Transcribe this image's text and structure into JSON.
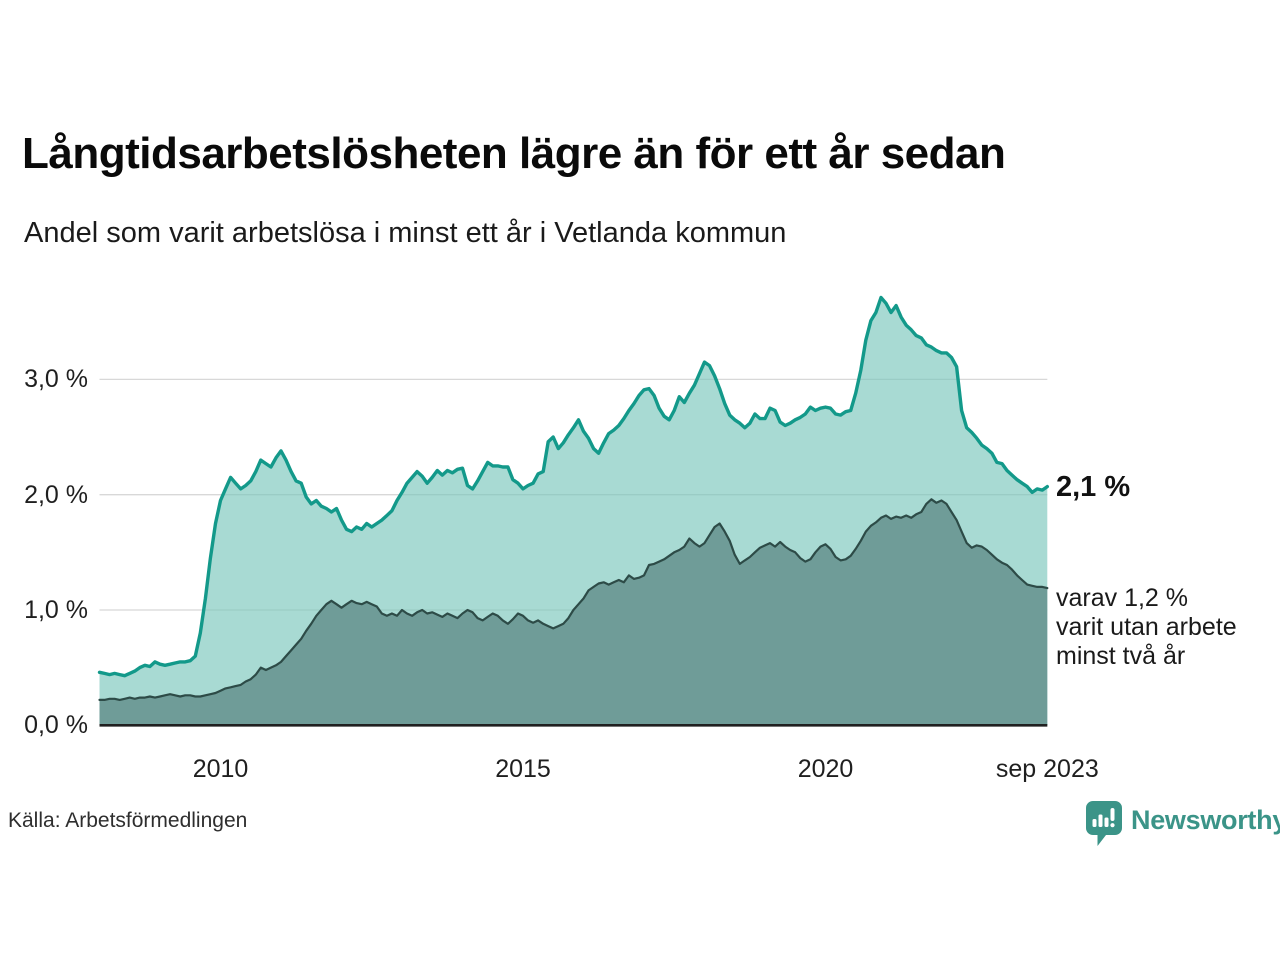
{
  "header": {
    "title": "Långtidsarbetslösheten lägre än för ett år sedan",
    "subtitle": "Andel som varit arbetslösa i minst ett år i Vetlanda kommun"
  },
  "chart_data": {
    "type": "area",
    "title": "Långtidsarbetslösheten lägre än för ett år sedan",
    "subtitle": "Andel som varit arbetslösa i minst ett år i Vetlanda kommun",
    "unit": "%",
    "x_start_year": 2008.0,
    "x_step_years": 0.0833333,
    "x_end_label": "sep 2023",
    "ylim": [
      0,
      3.85
    ],
    "grid": "horizontal",
    "legend": "none",
    "y_ticks": [
      {
        "v": 0,
        "label": "0,0 %"
      },
      {
        "v": 1,
        "label": "1,0 %"
      },
      {
        "v": 2,
        "label": "2,0 %"
      },
      {
        "v": 3,
        "label": "3,0 %"
      }
    ],
    "x_ticks": [
      {
        "v": 2010,
        "label": "2010"
      },
      {
        "v": 2015,
        "label": "2015"
      },
      {
        "v": 2020,
        "label": "2020"
      },
      {
        "v": 2023.67,
        "label": "sep 2023"
      }
    ],
    "series": [
      {
        "name": "arbetslösa minst ett år",
        "line_color": "#13998a",
        "fill_color": "rgba(121,198,188,0.65)",
        "line_width": 3.4,
        "values": [
          0.46,
          0.45,
          0.44,
          0.45,
          0.44,
          0.43,
          0.45,
          0.47,
          0.5,
          0.52,
          0.51,
          0.55,
          0.53,
          0.52,
          0.53,
          0.54,
          0.55,
          0.55,
          0.56,
          0.6,
          0.8,
          1.1,
          1.45,
          1.75,
          1.95,
          2.05,
          2.15,
          2.1,
          2.05,
          2.08,
          2.12,
          2.2,
          2.3,
          2.27,
          2.24,
          2.32,
          2.38,
          2.3,
          2.2,
          2.12,
          2.1,
          1.98,
          1.92,
          1.95,
          1.9,
          1.88,
          1.85,
          1.88,
          1.78,
          1.7,
          1.68,
          1.72,
          1.7,
          1.75,
          1.72,
          1.75,
          1.78,
          1.82,
          1.86,
          1.95,
          2.02,
          2.1,
          2.15,
          2.2,
          2.16,
          2.1,
          2.15,
          2.21,
          2.17,
          2.21,
          2.19,
          2.22,
          2.23,
          2.08,
          2.05,
          2.12,
          2.2,
          2.28,
          2.25,
          2.25,
          2.24,
          2.24,
          2.13,
          2.1,
          2.05,
          2.08,
          2.1,
          2.18,
          2.2,
          2.46,
          2.5,
          2.4,
          2.45,
          2.52,
          2.58,
          2.65,
          2.55,
          2.49,
          2.4,
          2.36,
          2.45,
          2.53,
          2.56,
          2.6,
          2.66,
          2.73,
          2.79,
          2.86,
          2.91,
          2.92,
          2.86,
          2.75,
          2.68,
          2.65,
          2.73,
          2.85,
          2.8,
          2.88,
          2.95,
          3.05,
          3.15,
          3.12,
          3.03,
          2.92,
          2.79,
          2.69,
          2.65,
          2.62,
          2.58,
          2.62,
          2.7,
          2.66,
          2.66,
          2.75,
          2.73,
          2.63,
          2.6,
          2.62,
          2.65,
          2.67,
          2.7,
          2.76,
          2.73,
          2.75,
          2.76,
          2.75,
          2.7,
          2.69,
          2.72,
          2.73,
          2.88,
          3.08,
          3.34,
          3.51,
          3.58,
          3.71,
          3.66,
          3.58,
          3.64,
          3.54,
          3.47,
          3.43,
          3.38,
          3.36,
          3.3,
          3.28,
          3.25,
          3.23,
          3.23,
          3.19,
          3.11,
          2.73,
          2.58,
          2.54,
          2.49,
          2.43,
          2.4,
          2.36,
          2.28,
          2.27,
          2.21,
          2.17,
          2.13,
          2.1,
          2.07,
          2.02,
          2.05,
          2.04,
          2.07
        ]
      },
      {
        "name": "varit utan arbete minst två år",
        "line_color": "#2d4b47",
        "fill_color": "#6f9c98",
        "line_width": 2.2,
        "values": [
          0.22,
          0.22,
          0.23,
          0.23,
          0.22,
          0.23,
          0.24,
          0.23,
          0.24,
          0.24,
          0.25,
          0.24,
          0.25,
          0.26,
          0.27,
          0.26,
          0.25,
          0.26,
          0.26,
          0.25,
          0.25,
          0.26,
          0.27,
          0.28,
          0.3,
          0.32,
          0.33,
          0.34,
          0.35,
          0.38,
          0.4,
          0.44,
          0.5,
          0.48,
          0.5,
          0.52,
          0.55,
          0.6,
          0.65,
          0.7,
          0.75,
          0.82,
          0.88,
          0.95,
          1.0,
          1.05,
          1.08,
          1.05,
          1.02,
          1.05,
          1.08,
          1.06,
          1.05,
          1.07,
          1.05,
          1.03,
          0.97,
          0.95,
          0.97,
          0.95,
          1.0,
          0.97,
          0.95,
          0.98,
          1.0,
          0.97,
          0.98,
          0.96,
          0.94,
          0.97,
          0.95,
          0.93,
          0.97,
          1.0,
          0.98,
          0.93,
          0.91,
          0.94,
          0.97,
          0.95,
          0.91,
          0.88,
          0.92,
          0.97,
          0.95,
          0.91,
          0.89,
          0.91,
          0.88,
          0.86,
          0.84,
          0.86,
          0.88,
          0.93,
          1.0,
          1.05,
          1.1,
          1.17,
          1.2,
          1.23,
          1.24,
          1.22,
          1.24,
          1.26,
          1.24,
          1.3,
          1.27,
          1.28,
          1.3,
          1.39,
          1.4,
          1.42,
          1.44,
          1.47,
          1.5,
          1.52,
          1.55,
          1.62,
          1.58,
          1.55,
          1.58,
          1.65,
          1.72,
          1.75,
          1.68,
          1.6,
          1.48,
          1.4,
          1.43,
          1.46,
          1.5,
          1.54,
          1.56,
          1.58,
          1.55,
          1.59,
          1.55,
          1.52,
          1.5,
          1.45,
          1.42,
          1.44,
          1.5,
          1.55,
          1.57,
          1.53,
          1.46,
          1.43,
          1.44,
          1.47,
          1.53,
          1.6,
          1.68,
          1.73,
          1.76,
          1.8,
          1.82,
          1.79,
          1.81,
          1.8,
          1.82,
          1.8,
          1.83,
          1.85,
          1.92,
          1.96,
          1.93,
          1.95,
          1.92,
          1.85,
          1.78,
          1.68,
          1.58,
          1.54,
          1.56,
          1.55,
          1.52,
          1.48,
          1.44,
          1.41,
          1.39,
          1.35,
          1.3,
          1.26,
          1.22,
          1.21,
          1.2,
          1.2,
          1.19
        ]
      }
    ],
    "annotations": {
      "latest_total": "2,1 %",
      "latest_sub_lines": [
        "varav 1,2 %",
        "varit utan arbete",
        "minst två år"
      ]
    }
  },
  "footer": {
    "source": "Källa: Arbetsförmedlingen",
    "brand": "Newsworthy"
  },
  "colors": {
    "accent_teal": "#13998a",
    "light_area": "#a9dcd4",
    "dark_area": "#6f9c98",
    "dark_line": "#2d4b47",
    "brand_teal": "#3b9488",
    "grid": "#d8d8d8",
    "baseline": "#202020",
    "text": "#0a0a0a"
  }
}
